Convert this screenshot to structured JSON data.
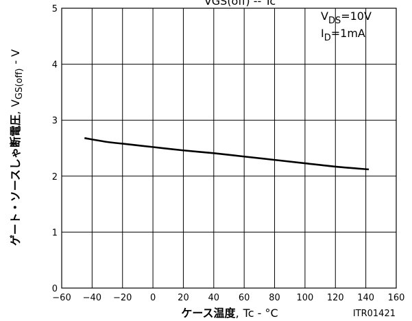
{
  "chart_data": {
    "type": "line",
    "title": "VGS(off) -- Tc",
    "xlabel": {
      "main": "ケース温度",
      "sep": ",",
      "param": "Tc - °C"
    },
    "ylabel": {
      "main": "ゲート・ソースしゃ断電圧",
      "sep": ",",
      "sym": "V",
      "sub": "GS(off)",
      "unit": "- V"
    },
    "xlim": [
      -60,
      160
    ],
    "ylim": [
      0,
      5
    ],
    "x_ticks": [
      "-60",
      "-40",
      "-20",
      "0",
      "20",
      "40",
      "60",
      "80",
      "100",
      "120",
      "140",
      "160"
    ],
    "y_ticks": [
      "0",
      "1",
      "2",
      "3",
      "4",
      "5"
    ],
    "grid": true,
    "conditions": [
      {
        "sym": "V",
        "sub": "DS",
        "value": "=10V"
      },
      {
        "sym": "I",
        "sub": "D",
        "value": "=1mA"
      }
    ],
    "series": [
      {
        "x": [
          -45,
          -30,
          -20,
          0,
          20,
          40,
          60,
          80,
          100,
          120,
          142
        ],
        "y": [
          2.68,
          2.61,
          2.58,
          2.52,
          2.46,
          2.41,
          2.35,
          2.29,
          2.23,
          2.17,
          2.12
        ]
      }
    ],
    "code": "ITR01421"
  }
}
